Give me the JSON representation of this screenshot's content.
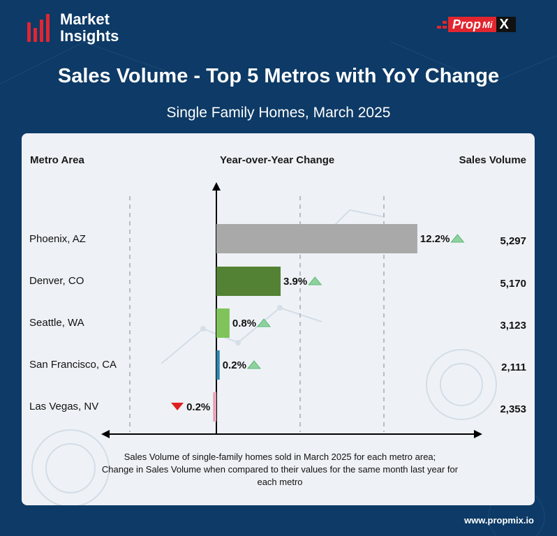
{
  "brand": {
    "line1": "Market",
    "line2": "Insights"
  },
  "logo": {
    "part1": "Prop",
    "part2": "Mi",
    "part3": "X"
  },
  "header": {
    "title": "Sales Volume - Top 5 Metros with YoY Change",
    "subtitle": "Single Family Homes, March 2025"
  },
  "columns": {
    "metro": "Metro Area",
    "change": "Year-over-Year Change",
    "volume": "Sales Volume"
  },
  "chart_data": {
    "type": "bar",
    "orientation": "horizontal",
    "categories": [
      "Phoenix, AZ",
      "Denver, CO",
      "Seattle, WA",
      "San Francisco, CA",
      "Las Vegas, NV"
    ],
    "yoy_change": [
      12.2,
      3.9,
      0.8,
      0.2,
      -0.2
    ],
    "yoy_labels": [
      "12.2%",
      "3.9%",
      "0.8%",
      "0.2%",
      "0.2%"
    ],
    "direction": [
      "up",
      "up",
      "up",
      "up",
      "down"
    ],
    "sales_volume": [
      "5,297",
      "5,170",
      "3,123",
      "2,111",
      "2,353"
    ],
    "bar_colors": [
      "#a9a9a9",
      "#548235",
      "#7fc35a",
      "#2e86ab",
      "#e6a4b4"
    ],
    "up_color": "#8fd19e",
    "down_color": "#e02020",
    "xlim": [
      -5,
      12.5
    ],
    "grid": true
  },
  "footnote": {
    "line1": "Sales Volume of single-family homes sold in March 2025 for each metro area;",
    "line2": "Change in Sales Volume when compared to their values for the same month last year for",
    "line3": "each metro"
  },
  "footer": {
    "url": "www.propmix.io"
  }
}
